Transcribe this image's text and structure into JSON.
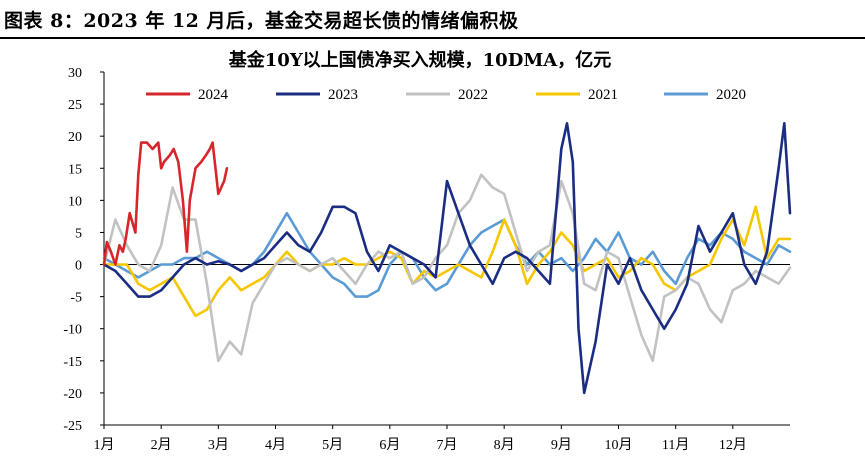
{
  "figure": {
    "title": "图表 8：2023 年 12 月后，基金交易超长债的情绪偏积极"
  },
  "chart_data": {
    "type": "line",
    "title": "基金10Y以上国债净买入规模，10DMA，亿元",
    "xlabel": "",
    "ylabel": "",
    "ylim": [
      -25,
      30
    ],
    "yticks": [
      -25,
      -20,
      -15,
      -10,
      -5,
      0,
      5,
      10,
      15,
      20,
      25,
      30
    ],
    "xlim": [
      0,
      12
    ],
    "x_categories": [
      "1月",
      "2月",
      "3月",
      "4月",
      "5月",
      "6月",
      "7月",
      "8月",
      "9月",
      "10月",
      "11月",
      "12月"
    ],
    "grid": false,
    "legend_position": "top",
    "series": [
      {
        "name": "2024",
        "color": "#d7262b",
        "x": [
          0,
          0.05,
          0.12,
          0.2,
          0.27,
          0.33,
          0.38,
          0.45,
          0.55,
          0.6,
          0.65,
          0.75,
          0.85,
          0.95,
          1.0,
          1.05,
          1.15,
          1.22,
          1.3,
          1.38,
          1.45,
          1.5,
          1.6,
          1.7,
          1.78,
          1.85,
          1.9,
          1.95,
          2.0,
          2.05,
          2.1,
          2.15
        ],
        "y": [
          0,
          3.5,
          2,
          0,
          3,
          2,
          4,
          8,
          5,
          14,
          19,
          19,
          18,
          19,
          15,
          16,
          17,
          18,
          16,
          10,
          2,
          10,
          15,
          16,
          17,
          18,
          19,
          15,
          11,
          12,
          13,
          15
        ]
      },
      {
        "name": "2023",
        "color": "#1b2d82",
        "x": [
          0,
          0.2,
          0.4,
          0.6,
          0.8,
          1.0,
          1.2,
          1.4,
          1.6,
          1.8,
          2.0,
          2.2,
          2.4,
          2.6,
          2.8,
          3.0,
          3.2,
          3.4,
          3.6,
          3.8,
          4.0,
          4.2,
          4.4,
          4.6,
          4.8,
          5.0,
          5.2,
          5.4,
          5.6,
          5.8,
          6.0,
          6.2,
          6.4,
          6.6,
          6.8,
          7.0,
          7.2,
          7.4,
          7.6,
          7.8,
          8.0,
          8.1,
          8.2,
          8.3,
          8.4,
          8.6,
          8.8,
          9.0,
          9.2,
          9.4,
          9.6,
          9.8,
          10.0,
          10.2,
          10.4,
          10.6,
          10.8,
          11.0,
          11.2,
          11.4,
          11.6,
          11.8,
          11.9,
          12.0
        ],
        "y": [
          0,
          -1,
          -3,
          -5,
          -5,
          -4,
          -2,
          0,
          1,
          0,
          0.5,
          0,
          -1,
          0,
          1,
          3,
          5,
          3,
          2,
          5,
          9,
          9,
          8,
          2,
          -1,
          3,
          2,
          1,
          0,
          -2,
          13,
          8,
          3,
          0,
          -3,
          1,
          2,
          1,
          -1,
          -3,
          18,
          22,
          16,
          -10,
          -20,
          -12,
          0,
          -3,
          1,
          -4,
          -7,
          -10,
          -7,
          -3,
          6,
          2,
          5,
          8,
          0,
          -3,
          2,
          15,
          22,
          8
        ]
      },
      {
        "name": "2022",
        "color": "#c2c2c2",
        "x": [
          0,
          0.2,
          0.4,
          0.6,
          0.8,
          1.0,
          1.2,
          1.4,
          1.6,
          1.8,
          2.0,
          2.2,
          2.4,
          2.6,
          2.8,
          3.0,
          3.2,
          3.4,
          3.6,
          3.8,
          4.0,
          4.2,
          4.4,
          4.6,
          4.8,
          5.0,
          5.2,
          5.4,
          5.6,
          5.8,
          6.0,
          6.2,
          6.4,
          6.6,
          6.8,
          7.0,
          7.2,
          7.4,
          7.6,
          7.8,
          8.0,
          8.2,
          8.4,
          8.6,
          8.8,
          9.0,
          9.2,
          9.4,
          9.6,
          9.8,
          10.0,
          10.2,
          10.4,
          10.6,
          10.8,
          11.0,
          11.2,
          11.4,
          11.6,
          11.8,
          12.0
        ],
        "y": [
          0,
          7,
          3,
          0,
          -1,
          3,
          12,
          7,
          7,
          -3,
          -15,
          -12,
          -14,
          -6,
          -3,
          0,
          1,
          0,
          -1,
          0,
          1,
          -1,
          -3,
          0,
          2,
          1,
          2,
          -3,
          -2,
          1,
          3,
          8,
          10,
          14,
          12,
          11,
          5,
          -1,
          2,
          3,
          13,
          8,
          -3,
          -4,
          2,
          1,
          -5,
          -11,
          -15,
          -5,
          -4,
          -2,
          -3,
          -7,
          -9,
          -4,
          -3,
          -1,
          -2,
          -3,
          -0.5
        ]
      },
      {
        "name": "2021",
        "color": "#f6c700",
        "x": [
          0,
          0.2,
          0.4,
          0.6,
          0.8,
          1.0,
          1.2,
          1.4,
          1.6,
          1.8,
          2.0,
          2.2,
          2.4,
          2.6,
          2.8,
          3.0,
          3.2,
          3.4,
          3.6,
          3.8,
          4.0,
          4.2,
          4.4,
          4.6,
          4.8,
          5.0,
          5.2,
          5.4,
          5.6,
          5.8,
          6.0,
          6.2,
          6.4,
          6.6,
          6.8,
          7.0,
          7.2,
          7.4,
          7.6,
          7.8,
          8.0,
          8.2,
          8.4,
          8.6,
          8.8,
          9.0,
          9.2,
          9.4,
          9.6,
          9.8,
          10.0,
          10.2,
          10.4,
          10.6,
          10.8,
          11.0,
          11.2,
          11.4,
          11.6,
          11.8,
          12.0
        ],
        "y": [
          0,
          0,
          0,
          -3,
          -4,
          -3,
          -2,
          -5,
          -8,
          -7,
          -4,
          -2,
          -4,
          -3,
          -2,
          0,
          2,
          0,
          -1,
          0,
          0,
          1,
          0,
          0,
          1,
          2,
          1,
          -3,
          -1,
          -2,
          -1,
          0,
          -1,
          -2,
          2,
          7,
          3,
          -3,
          0,
          2,
          5,
          3,
          -1,
          0,
          1,
          -2,
          -1,
          1,
          0,
          -3,
          -4,
          -2,
          -1,
          0,
          4,
          7,
          3,
          9,
          1,
          4,
          4
        ]
      },
      {
        "name": "2020",
        "color": "#5b9bd5",
        "x": [
          0,
          0.2,
          0.4,
          0.6,
          0.8,
          1.0,
          1.2,
          1.4,
          1.6,
          1.8,
          2.0,
          2.2,
          2.4,
          2.6,
          2.8,
          3.0,
          3.2,
          3.4,
          3.6,
          3.8,
          4.0,
          4.2,
          4.4,
          4.6,
          4.8,
          5.0,
          5.2,
          5.4,
          5.6,
          5.8,
          6.0,
          6.2,
          6.4,
          6.6,
          6.8,
          7.0,
          7.2,
          7.4,
          7.6,
          7.8,
          8.0,
          8.2,
          8.4,
          8.6,
          8.8,
          9.0,
          9.2,
          9.4,
          9.6,
          9.8,
          10.0,
          10.2,
          10.4,
          10.6,
          10.8,
          11.0,
          11.2,
          11.4,
          11.6,
          11.8,
          12.0
        ],
        "y": [
          1,
          0,
          -1,
          -2,
          -1,
          0,
          0,
          1,
          1,
          2,
          1,
          0,
          -1,
          0,
          2,
          5,
          8,
          5,
          2,
          0,
          -2,
          -3,
          -5,
          -5,
          -4,
          0,
          2,
          1,
          -2,
          -4,
          -3,
          0,
          3,
          5,
          6,
          7,
          3,
          0,
          2,
          0,
          1,
          -1,
          1,
          4,
          2,
          5,
          1,
          0,
          2,
          -1,
          -3,
          1,
          4,
          3,
          5,
          4,
          2,
          1,
          0,
          3,
          2
        ]
      }
    ]
  }
}
